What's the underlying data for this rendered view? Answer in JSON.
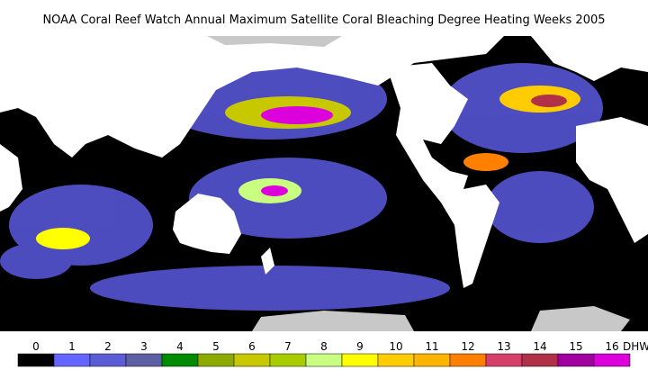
{
  "title": "NOAA Coral Reef Watch Annual Maximum Satellite Coral Bleaching Degree Heating Weeks    2005",
  "legend": {
    "values": [
      0,
      1,
      2,
      3,
      4,
      5,
      6,
      7,
      8,
      9,
      10,
      11,
      12,
      13,
      14,
      15,
      16
    ],
    "unit": "DHW",
    "colors": [
      "#000000",
      "#6464ff",
      "#5c5cd6",
      "#5e5ea4",
      "#008a00",
      "#8caa00",
      "#c8c800",
      "#a8cc00",
      "#c8ff80",
      "#ffff00",
      "#ffcc00",
      "#ffb400",
      "#ff8000",
      "#d4406a",
      "#b03048",
      "#a000a0",
      "#dc00dc"
    ]
  }
}
